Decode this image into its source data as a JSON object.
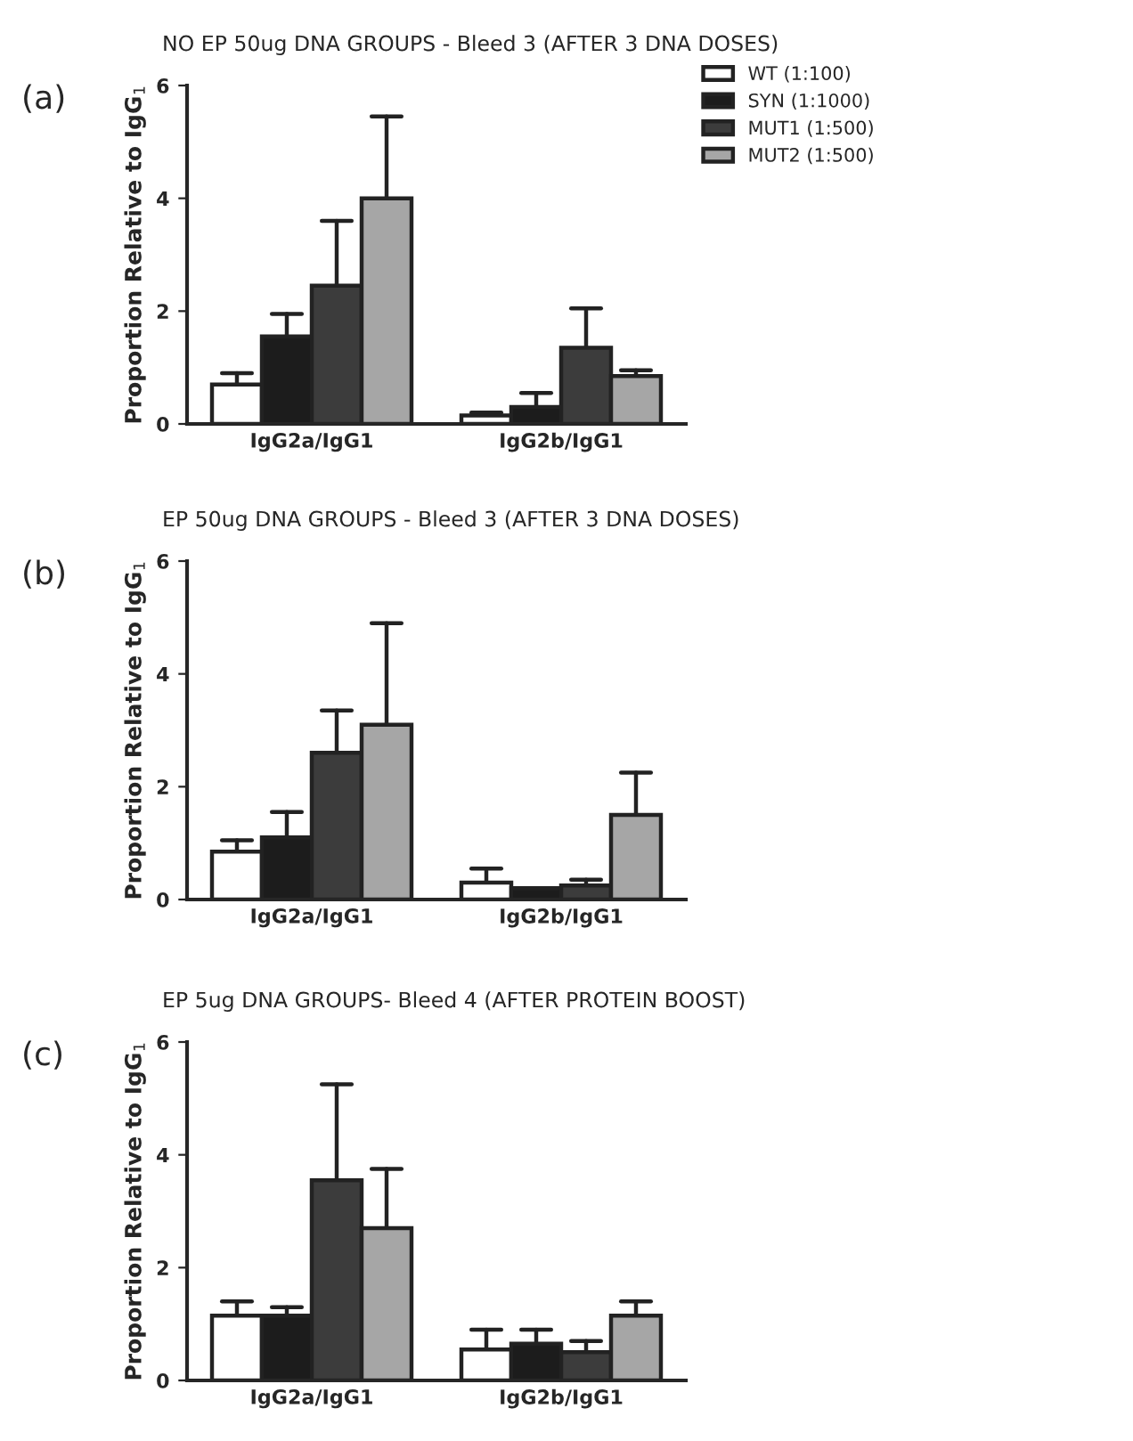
{
  "chart_data": [
    {
      "type": "bar",
      "title": "NO EP 50ug DNA GROUPS - Bleed 3 (AFTER 3 DNA DOSES)",
      "ylabel": "Proportion Relative to IgG$_{1}$",
      "annotations": [
        "(a)"
      ],
      "categories": [
        "IgG2a/IgG1",
        "IgG2b/IgG1"
      ],
      "ylim": [
        0,
        6
      ],
      "yticks": [
        0,
        2,
        4,
        6
      ],
      "grid": false,
      "legend": "top right",
      "series": [
        {
          "name": "WT (1:100)",
          "color": "#ffffff",
          "values": [
            0.7,
            0.15
          ],
          "errors": [
            [
              0.7,
              0.9
            ],
            [
              0.15,
              0.2
            ]
          ]
        },
        {
          "name": "SYN (1:1000)",
          "color": "#1c1c1c",
          "values": [
            1.55,
            0.3
          ],
          "errors": [
            [
              1.55,
              1.95
            ],
            [
              0.3,
              0.55
            ]
          ]
        },
        {
          "name": "MUT1 (1:500)",
          "color": "#3c3c3c",
          "values": [
            2.45,
            1.35
          ],
          "errors": [
            [
              2.45,
              3.6
            ],
            [
              1.35,
              2.05
            ]
          ]
        },
        {
          "name": "MUT2 (1:500)",
          "color": "#a6a6a6",
          "values": [
            4.0,
            0.85
          ],
          "errors": [
            [
              4.0,
              5.45
            ],
            [
              0.85,
              0.95
            ]
          ]
        }
      ]
    },
    {
      "type": "bar",
      "title": "EP 50ug DNA GROUPS - Bleed 3 (AFTER 3 DNA DOSES)",
      "ylabel": "Proportion Relative to IgG$_{1}$",
      "annotations": [
        "(b)"
      ],
      "categories": [
        "IgG2a/IgG1",
        "IgG2b/IgG1"
      ],
      "ylim": [
        0,
        6
      ],
      "yticks": [
        0,
        2,
        4,
        6
      ],
      "grid": false,
      "series": [
        {
          "color": "#ffffff",
          "values": [
            0.85,
            0.3
          ],
          "errors": [
            [
              0.85,
              1.05
            ],
            [
              0.3,
              0.55
            ]
          ]
        },
        {
          "color": "#1c1c1c",
          "values": [
            1.1,
            0.2
          ],
          "errors": [
            [
              1.1,
              1.55
            ],
            [
              0.2,
              0.2
            ]
          ]
        },
        {
          "color": "#3c3c3c",
          "values": [
            2.6,
            0.25
          ],
          "errors": [
            [
              2.6,
              3.35
            ],
            [
              0.25,
              0.35
            ]
          ]
        },
        {
          "color": "#a6a6a6",
          "values": [
            3.1,
            1.5
          ],
          "errors": [
            [
              3.1,
              4.9
            ],
            [
              1.5,
              2.25
            ]
          ]
        }
      ]
    },
    {
      "type": "bar",
      "title": "EP 5ug DNA GROUPS- Bleed 4 (AFTER PROTEIN BOOST)",
      "ylabel": "Proportion Relative to IgG$_{1}$",
      "annotations": [
        "(c)"
      ],
      "categories": [
        "IgG2a/IgG1",
        "IgG2b/IgG1"
      ],
      "ylim": [
        0,
        6
      ],
      "yticks": [
        0,
        2,
        4,
        6
      ],
      "grid": false,
      "series": [
        {
          "color": "#ffffff",
          "values": [
            1.15,
            0.55
          ],
          "errors": [
            [
              1.15,
              1.4
            ],
            [
              0.55,
              0.9
            ]
          ]
        },
        {
          "color": "#1c1c1c",
          "values": [
            1.15,
            0.65
          ],
          "errors": [
            [
              1.15,
              1.3
            ],
            [
              0.65,
              0.9
            ]
          ]
        },
        {
          "color": "#3c3c3c",
          "values": [
            3.55,
            0.5
          ],
          "errors": [
            [
              3.55,
              5.25
            ],
            [
              0.5,
              0.7
            ]
          ]
        },
        {
          "color": "#a6a6a6",
          "values": [
            2.7,
            1.15
          ],
          "errors": [
            [
              2.7,
              3.75
            ],
            [
              1.15,
              1.4
            ]
          ]
        }
      ]
    }
  ]
}
